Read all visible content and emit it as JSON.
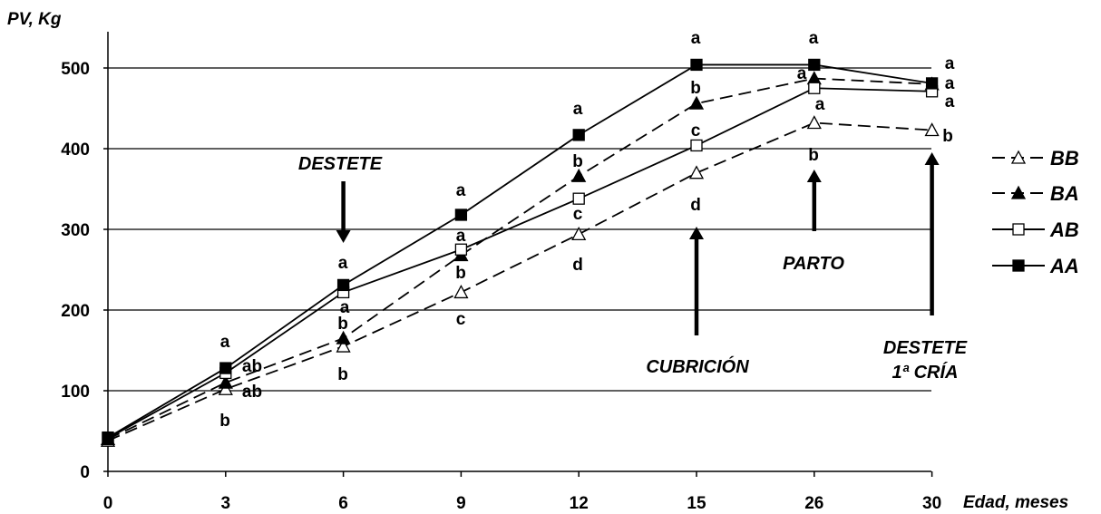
{
  "chart_data": {
    "type": "line",
    "ylabel": "PV, Kg",
    "xlabel": "Edad, meses",
    "categories": [
      "0",
      "3",
      "6",
      "9",
      "12",
      "15",
      "26",
      "30"
    ],
    "ylim": [
      0,
      500
    ],
    "yticks": [
      0,
      100,
      200,
      300,
      400,
      500
    ],
    "grid": "horizontal",
    "legend_position": "right",
    "series": [
      {
        "name": "BB",
        "marker": "open-triangle",
        "dash": "dashed",
        "values": [
          38,
          102,
          155,
          222,
          294,
          370,
          432,
          423
        ],
        "labels": [
          "",
          "b",
          "b",
          "c",
          "d",
          "d",
          "b",
          "b"
        ]
      },
      {
        "name": "BA",
        "marker": "filled-triangle",
        "dash": "dashed",
        "values": [
          40,
          110,
          165,
          268,
          366,
          456,
          487,
          480
        ],
        "labels": [
          "",
          "ab",
          "b",
          "b",
          "b",
          "b",
          "a",
          "a"
        ]
      },
      {
        "name": "AB",
        "marker": "open-square",
        "dash": "solid",
        "values": [
          41,
          122,
          222,
          275,
          338,
          404,
          475,
          471
        ],
        "labels": [
          "",
          "ab",
          "a",
          "a",
          "c",
          "c",
          "a",
          "a"
        ]
      },
      {
        "name": "AA",
        "marker": "filled-square",
        "dash": "solid",
        "values": [
          42,
          128,
          231,
          318,
          417,
          504,
          504,
          481
        ],
        "labels": [
          "",
          "a",
          "a",
          "a",
          "a",
          "a",
          "a",
          "a"
        ]
      }
    ],
    "annotations": [
      {
        "text": "DESTETE",
        "arrow": "down",
        "at_category": "6"
      },
      {
        "text": "CUBRICIÓN",
        "arrow": "up",
        "at_category": "15"
      },
      {
        "text": "PARTO",
        "arrow": "up",
        "at_category": "26"
      },
      {
        "text": "DESTETE",
        "text2": "1ª CRÍA",
        "arrow": "up",
        "at_category": "30"
      }
    ]
  }
}
